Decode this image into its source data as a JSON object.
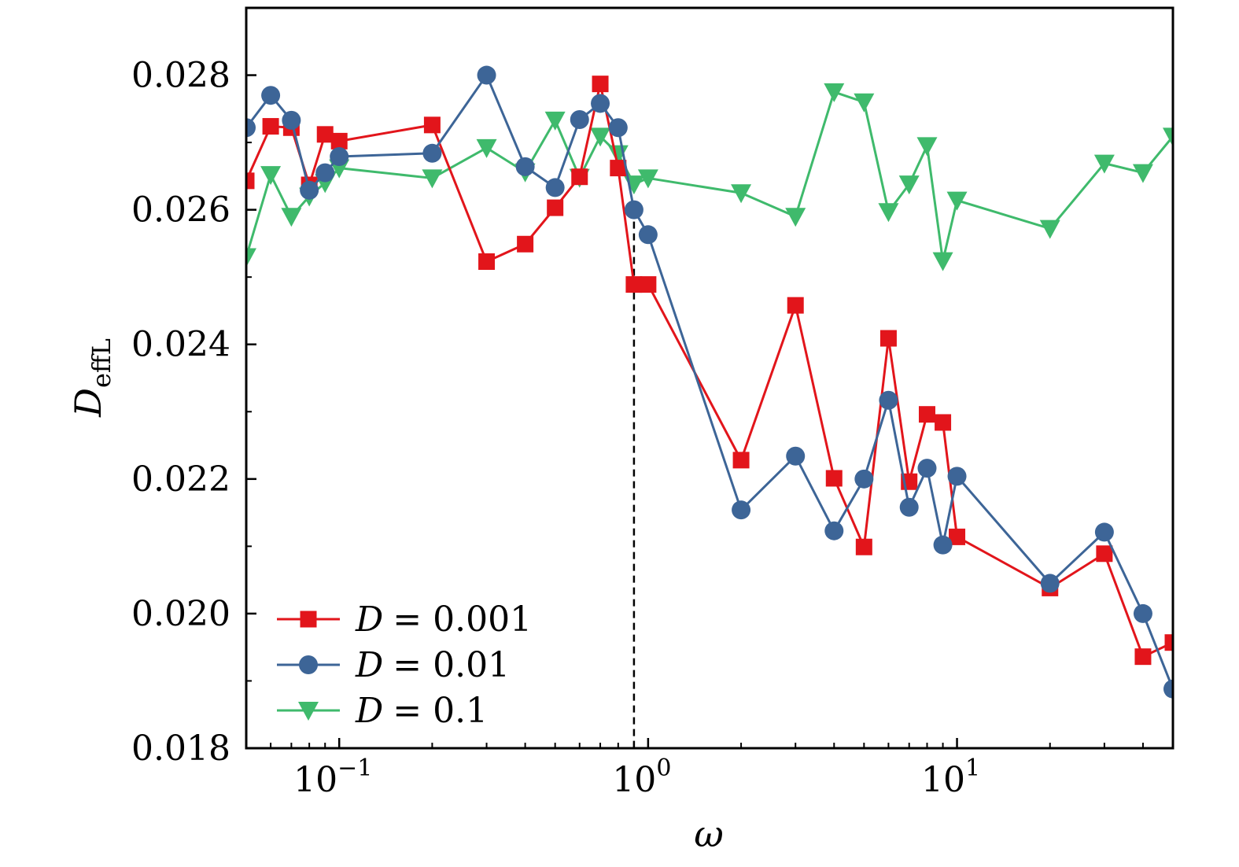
{
  "chart_data": {
    "type": "line",
    "title": "",
    "xlabel": "ω",
    "ylabel": {
      "base": "D",
      "subscript": "effL"
    },
    "xscale": "log",
    "xlim": [
      0.05,
      50
    ],
    "ylim": [
      0.018,
      0.029
    ],
    "yticks": [
      0.018,
      0.02,
      0.022,
      0.024,
      0.026,
      0.028
    ],
    "ytick_labels": [
      "0.018",
      "0.020",
      "0.022",
      "0.024",
      "0.026",
      "0.028"
    ],
    "xticks": [
      {
        "value": 0.1,
        "base": "10",
        "exp": "−1"
      },
      {
        "value": 1,
        "base": "10",
        "exp": "0"
      },
      {
        "value": 10,
        "base": "10",
        "exp": "1"
      }
    ],
    "reference_line": {
      "x": 0.9,
      "style": "dashed",
      "color": "#000000"
    },
    "legend_position": "bottom-left",
    "series": [
      {
        "name": "D = 0.001",
        "label_var": "D",
        "label_value": "= 0.001",
        "color": "#e2151b",
        "marker": "square",
        "x": [
          0.05,
          0.06,
          0.07,
          0.08,
          0.09,
          0.1,
          0.2,
          0.3,
          0.4,
          0.5,
          0.6,
          0.7,
          0.8,
          0.9,
          1,
          2,
          3,
          4,
          5,
          6,
          7,
          8,
          9,
          10,
          20,
          30,
          40,
          50
        ],
        "y": [
          0.02643,
          0.02724,
          0.02722,
          0.02637,
          0.02712,
          0.02702,
          0.02726,
          0.02523,
          0.02549,
          0.02603,
          0.02649,
          0.02787,
          0.02662,
          0.02489,
          0.02489,
          0.02228,
          0.02458,
          0.02201,
          0.02099,
          0.02409,
          0.02196,
          0.02296,
          0.02284,
          0.02114,
          0.02038,
          0.02089,
          0.01936,
          0.01957
        ]
      },
      {
        "name": "D = 0.01",
        "label_var": "D",
        "label_value": "= 0.01",
        "color": "#3d6597",
        "marker": "circle",
        "x": [
          0.05,
          0.06,
          0.07,
          0.08,
          0.09,
          0.1,
          0.2,
          0.3,
          0.4,
          0.5,
          0.6,
          0.7,
          0.8,
          0.9,
          1,
          2,
          3,
          4,
          5,
          6,
          7,
          8,
          9,
          10,
          20,
          30,
          40,
          50
        ],
        "y": [
          0.02722,
          0.0277,
          0.02733,
          0.02629,
          0.02655,
          0.02679,
          0.02684,
          0.028,
          0.02664,
          0.02633,
          0.02734,
          0.02758,
          0.02722,
          0.026,
          0.02563,
          0.02154,
          0.02234,
          0.02123,
          0.022,
          0.02317,
          0.02158,
          0.02216,
          0.02102,
          0.02204,
          0.02045,
          0.02121,
          0.02,
          0.01888
        ]
      },
      {
        "name": "D = 0.1",
        "label_var": "D",
        "label_value": "= 0.1",
        "color": "#3fba6c",
        "marker": "triangle-down",
        "x": [
          0.05,
          0.06,
          0.07,
          0.08,
          0.09,
          0.1,
          0.2,
          0.3,
          0.4,
          0.5,
          0.6,
          0.7,
          0.8,
          0.9,
          1,
          2,
          3,
          4,
          5,
          6,
          7,
          8,
          9,
          10,
          20,
          30,
          40,
          50
        ],
        "y": [
          0.0253,
          0.02652,
          0.0259,
          0.0262,
          0.0264,
          0.02662,
          0.02647,
          0.02692,
          0.02656,
          0.02733,
          0.02648,
          0.02709,
          0.02683,
          0.02638,
          0.02647,
          0.02625,
          0.0259,
          0.02775,
          0.0276,
          0.02597,
          0.02638,
          0.02695,
          0.02524,
          0.02614,
          0.02572,
          0.02669,
          0.02655,
          0.02709
        ]
      }
    ]
  }
}
